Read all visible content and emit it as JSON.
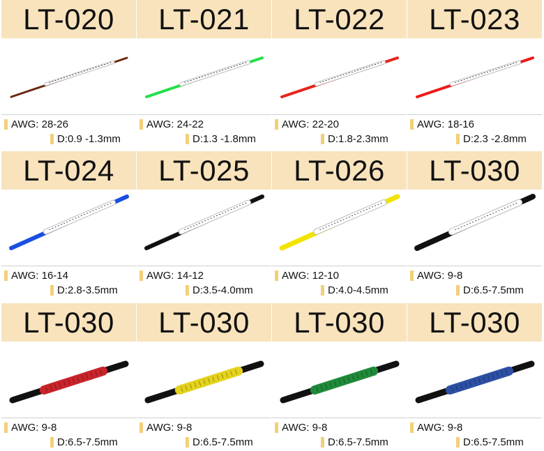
{
  "products": [
    {
      "code": "LT-020",
      "awg": "AWG: 28-26",
      "diameter": "D:0.9 -1.3mm"
    },
    {
      "code": "LT-021",
      "awg": "AWG: 24-22",
      "diameter": "D:1.3 -1.8mm"
    },
    {
      "code": "LT-022",
      "awg": "AWG: 22-20",
      "diameter": "D:1.8-2.3mm"
    },
    {
      "code": "LT-023",
      "awg": "AWG: 18-16",
      "diameter": "D:2.3 -2.8mm"
    },
    {
      "code": "LT-024",
      "awg": "AWG: 16-14",
      "diameter": "D:2.8-3.5mm"
    },
    {
      "code": "LT-025",
      "awg": "AWG: 14-12",
      "diameter": "D:3.5-4.0mm"
    },
    {
      "code": "LT-026",
      "awg": "AWG: 12-10",
      "diameter": "D:4.0-4.5mm"
    },
    {
      "code": "LT-030",
      "awg": "AWG: 9-8",
      "diameter": "D:6.5-7.5mm"
    },
    {
      "code": "LT-030",
      "awg": "AWG: 9-8",
      "diameter": "D:6.5-7.5mm"
    },
    {
      "code": "LT-030",
      "awg": "AWG: 9-8",
      "diameter": "D:6.5-7.5mm"
    },
    {
      "code": "LT-030",
      "awg": "AWG: 9-8",
      "diameter": "D:6.5-7.5mm"
    },
    {
      "code": "LT-030",
      "awg": "AWG: 9-8",
      "diameter": "D:6.5-7.5mm"
    }
  ]
}
